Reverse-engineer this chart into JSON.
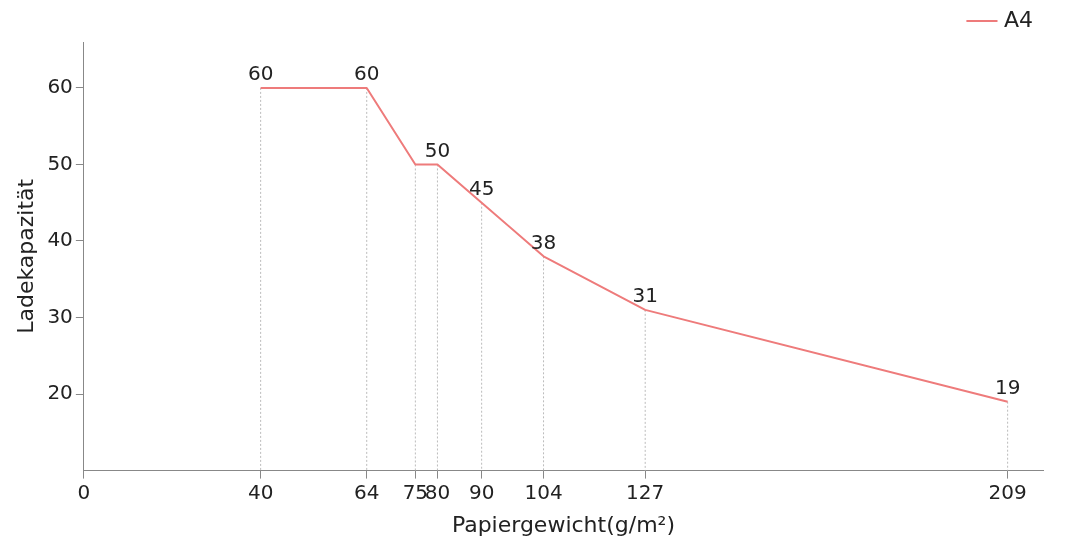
{
  "chart_data": {
    "type": "line",
    "xlabel": "Papiergewicht(g/m²)",
    "ylabel": "Ladekapazität",
    "x": [
      40,
      64,
      75,
      80,
      90,
      104,
      127,
      209
    ],
    "series": [
      {
        "name": "A4",
        "color": "#ee7b7b",
        "values": [
          60,
          60,
          50,
          50,
          45,
          38,
          31,
          19
        ],
        "value_labels": [
          "60",
          "60",
          null,
          "50",
          "45",
          "38",
          "31",
          "19"
        ]
      }
    ],
    "xlim": [
      0,
      217
    ],
    "xticks": [
      0,
      40,
      64,
      75,
      80,
      90,
      104,
      127,
      209
    ],
    "ylim": [
      10,
      66
    ],
    "yticks": [
      20,
      30,
      40,
      50,
      60
    ],
    "grid": "x",
    "legend": "top right",
    "marker": "none",
    "line_style": "solid"
  }
}
